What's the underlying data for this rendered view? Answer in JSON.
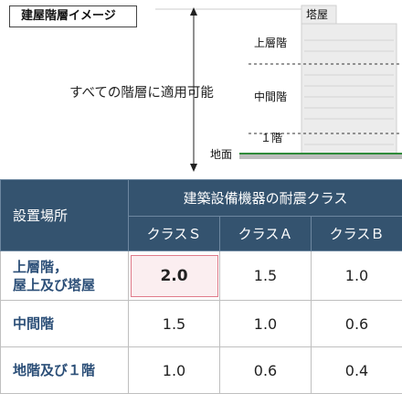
{
  "diagram": {
    "title": "建屋階層イメージ",
    "caption": "すべての階層に適用可能",
    "floor_labels": {
      "roof_structure": "塔屋",
      "upper": "上層階",
      "middle": "中間階",
      "first": "１階",
      "ground": "地面"
    }
  },
  "table": {
    "corner_header": "設置場所",
    "group_header": "建築設備機器の耐震クラス",
    "class_headers": [
      "クラスＳ",
      "クラスＡ",
      "クラスＢ"
    ],
    "rows": [
      {
        "location_line1": "上層階，",
        "location_line2": "屋上及び塔屋",
        "values": [
          "2.0",
          "1.5",
          "1.0"
        ]
      },
      {
        "location_line1": "中間階",
        "location_line2": "",
        "values": [
          "1.5",
          "1.0",
          "0.6"
        ]
      },
      {
        "location_line1": "地階及び１階",
        "location_line2": "",
        "values": [
          "1.0",
          "0.6",
          "0.4"
        ]
      }
    ]
  },
  "colors": {
    "header_bg": "#34536f",
    "row_header_text": "#2c4f78",
    "highlight_fill": "#fbeef0",
    "highlight_border": "#e07b8a"
  }
}
